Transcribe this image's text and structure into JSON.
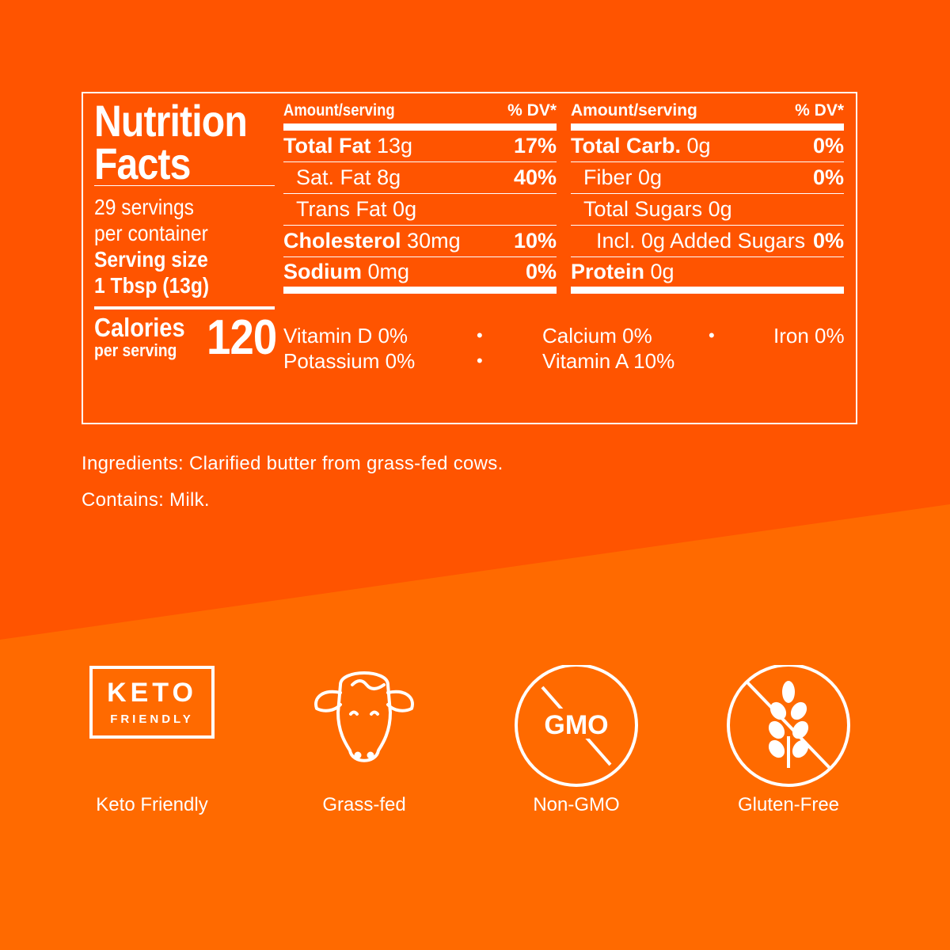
{
  "colors": {
    "upper_bg": "#ff5400",
    "lower_bg": "#ff6a00",
    "text": "#ffffff"
  },
  "nutrition": {
    "title_line1": "Nutrition",
    "title_line2": "Facts",
    "servings_line1": "29 servings",
    "servings_line2": "per container",
    "serving_size_label": "Serving size",
    "serving_size_value": "1 Tbsp (13g)",
    "calories_label": "Calories",
    "calories_sub": "per serving",
    "calories_value": "120",
    "header_amount": "Amount/serving",
    "header_dv": "% DV*",
    "left_rows": [
      {
        "name": "Total Fat",
        "amount": "13g",
        "dv": "17%"
      },
      {
        "name": "Sat. Fat",
        "amount": "8g",
        "dv": "40%"
      },
      {
        "name": "Trans Fat",
        "amount": "0g",
        "dv": ""
      },
      {
        "name": "Cholesterol",
        "amount": "30mg",
        "dv": "10%"
      },
      {
        "name": "Sodium",
        "amount": "0mg",
        "dv": "0%"
      }
    ],
    "right_rows": [
      {
        "name": "Total Carb.",
        "amount": "0g",
        "dv": "0%"
      },
      {
        "name": "Fiber",
        "amount": "0g",
        "dv": "0%"
      },
      {
        "name": "Total Sugars",
        "amount": "0g",
        "dv": ""
      },
      {
        "name": "Incl. 0g Added Sugars",
        "amount": "",
        "dv": "0%"
      },
      {
        "name": "Protein",
        "amount": "0g",
        "dv": ""
      }
    ],
    "vitamins": {
      "vitamin_d": "Vitamin D 0%",
      "calcium": "Calcium 0%",
      "iron": "Iron 0%",
      "potassium": "Potassium 0%",
      "vitamin_a": "Vitamin A 10%",
      "separator": "•"
    }
  },
  "ingredients": "Ingredients: Clarified butter from grass-fed cows.",
  "contains": "Contains: Milk.",
  "badges": {
    "keto": {
      "line1": "KETO",
      "line2": "FRIENDLY",
      "label": "Keto Friendly",
      "icon": "keto-badge-icon"
    },
    "grass": {
      "label": "Grass-fed",
      "icon": "cow-icon"
    },
    "gmo": {
      "text": "GMO",
      "label": "Non-GMO",
      "icon": "no-gmo-icon"
    },
    "gluten": {
      "label": "Gluten-Free",
      "icon": "no-wheat-icon"
    }
  }
}
